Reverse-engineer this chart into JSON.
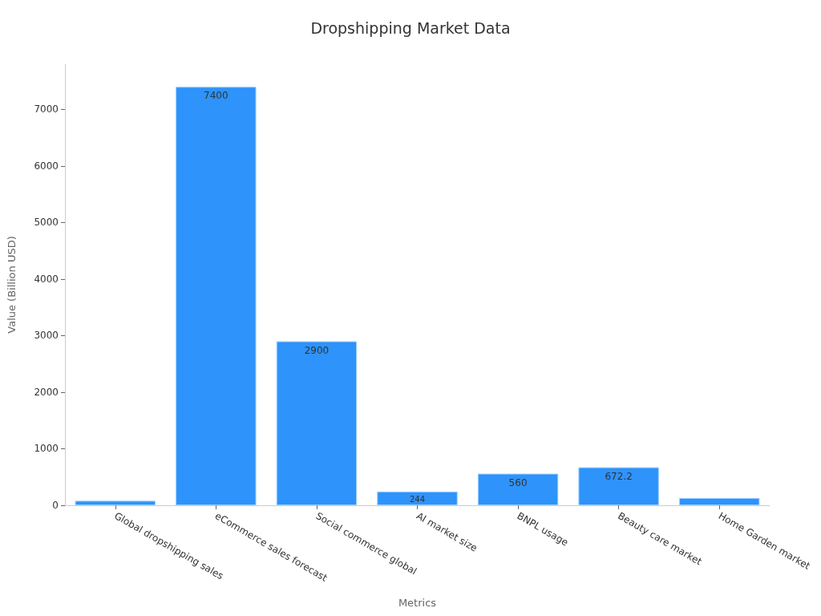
{
  "chart_data": {
    "type": "bar",
    "title": "Dropshipping Market Data",
    "xlabel": "Metrics",
    "ylabel": "Value (Billion USD)",
    "categories": [
      "Global dropshipping sales",
      "eCommerce sales forecast",
      "Social commerce global",
      "AI market size",
      "BNPL usage",
      "Beauty care market",
      "Home Garden market"
    ],
    "values": [
      80,
      7400,
      2900,
      244,
      560,
      672.2,
      130
    ],
    "value_labels": [
      null,
      "7400",
      "2900",
      "244",
      "560",
      "672.2",
      null
    ],
    "color": "#2e93fa",
    "ylim": [
      0,
      7800
    ],
    "yticks": [
      0,
      1000,
      2000,
      3000,
      4000,
      5000,
      6000,
      7000
    ],
    "grid": false
  }
}
